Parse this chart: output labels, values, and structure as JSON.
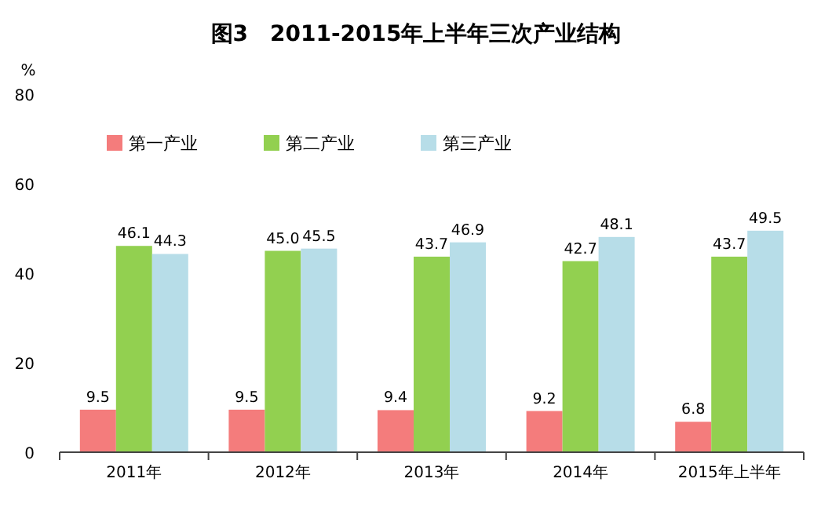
{
  "chart_data": {
    "type": "bar",
    "title": "图3　2011-2015年上半年三次产业结构",
    "ylabel": "%",
    "categories": [
      "2011年",
      "2012年",
      "2013年",
      "2014年",
      "2015年上半年"
    ],
    "series": [
      {
        "name": "第一产业",
        "color": "#f47c7c",
        "values": [
          9.5,
          9.5,
          9.4,
          9.2,
          6.8
        ],
        "value_labels": [
          "9.5",
          "9.5",
          "9.4",
          "9.2",
          "6.8"
        ]
      },
      {
        "name": "第二产业",
        "color": "#92d050",
        "values": [
          46.1,
          45.0,
          43.7,
          42.7,
          43.7
        ],
        "value_labels": [
          "46.1",
          "45.0",
          "43.7",
          "42.7",
          "43.7"
        ]
      },
      {
        "name": "第三产业",
        "color": "#b7dde8",
        "values": [
          44.3,
          45.5,
          46.9,
          48.1,
          49.5
        ],
        "value_labels": [
          "44.3",
          "45.5",
          "46.9",
          "48.1",
          "49.5"
        ]
      }
    ],
    "ylim": [
      0,
      80
    ],
    "yticks": [
      0,
      20,
      40,
      60,
      80
    ],
    "legend": "top left",
    "grid": false
  }
}
